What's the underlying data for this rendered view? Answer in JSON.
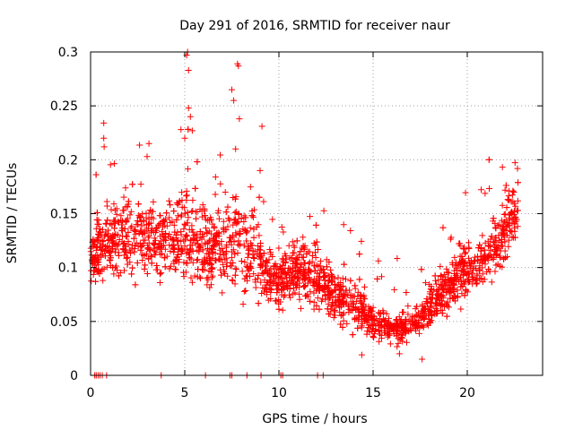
{
  "chart_data": {
    "type": "scatter",
    "title": "Day 291 of 2016, SRMTID for receiver naur",
    "xlabel": "GPS time / hours",
    "ylabel": "SRMTID / TECUs",
    "xlim": [
      0,
      24
    ],
    "ylim": [
      0,
      0.3
    ],
    "xticks": [
      0,
      5,
      10,
      15,
      20
    ],
    "xtick_labels": [
      "0",
      "5",
      "10",
      "15",
      "20"
    ],
    "yticks": [
      0,
      0.05,
      0.1,
      0.15,
      0.2,
      0.25,
      0.3
    ],
    "ytick_labels": [
      "0",
      "0.05",
      "0.1",
      "0.15",
      "0.2",
      "0.25",
      "0.3"
    ],
    "grid": true,
    "marker": "plus",
    "color": "#ff0000",
    "series": [
      {
        "name": "SRMTID",
        "trend": {
          "x": [
            0.0,
            0.5,
            1.0,
            2.0,
            3.0,
            4.0,
            5.0,
            6.0,
            7.0,
            8.0,
            9.0,
            10.0,
            11.0,
            12.0,
            13.0,
            14.0,
            15.0,
            16.0,
            17.0,
            18.0,
            19.0,
            20.0,
            21.0,
            22.0,
            22.7
          ],
          "y": [
            0.108,
            0.12,
            0.125,
            0.13,
            0.128,
            0.125,
            0.13,
            0.118,
            0.12,
            0.125,
            0.1,
            0.088,
            0.098,
            0.09,
            0.075,
            0.068,
            0.05,
            0.042,
            0.045,
            0.065,
            0.08,
            0.1,
            0.11,
            0.13,
            0.155
          ],
          "spread": [
            0.02,
            0.03,
            0.035,
            0.035,
            0.035,
            0.035,
            0.04,
            0.035,
            0.035,
            0.04,
            0.03,
            0.025,
            0.03,
            0.025,
            0.022,
            0.02,
            0.015,
            0.012,
            0.013,
            0.018,
            0.022,
            0.025,
            0.025,
            0.028,
            0.03
          ]
        },
        "peaks": [
          {
            "x": 0.7,
            "y": 0.234
          },
          {
            "x": 0.7,
            "y": 0.22
          },
          {
            "x": 0.72,
            "y": 0.212
          },
          {
            "x": 3.0,
            "y": 0.203
          },
          {
            "x": 3.1,
            "y": 0.215
          },
          {
            "x": 4.8,
            "y": 0.228
          },
          {
            "x": 5.0,
            "y": 0.22
          },
          {
            "x": 5.1,
            "y": 0.297
          },
          {
            "x": 5.15,
            "y": 0.3
          },
          {
            "x": 5.2,
            "y": 0.283
          },
          {
            "x": 5.2,
            "y": 0.248
          },
          {
            "x": 5.3,
            "y": 0.24
          },
          {
            "x": 5.4,
            "y": 0.227
          },
          {
            "x": 7.5,
            "y": 0.265
          },
          {
            "x": 7.6,
            "y": 0.255
          },
          {
            "x": 7.8,
            "y": 0.289
          },
          {
            "x": 7.85,
            "y": 0.287
          },
          {
            "x": 7.9,
            "y": 0.238
          },
          {
            "x": 7.7,
            "y": 0.21
          },
          {
            "x": 9.1,
            "y": 0.231
          },
          {
            "x": 9.0,
            "y": 0.19
          },
          {
            "x": 14.4,
            "y": 0.019
          },
          {
            "x": 16.4,
            "y": 0.02
          },
          {
            "x": 17.6,
            "y": 0.015
          }
        ],
        "zero_points_x": [
          0.22,
          0.3,
          0.4,
          0.5,
          0.62,
          0.85,
          3.75,
          6.1,
          7.4,
          7.5,
          8.3,
          9.05,
          10.1,
          10.2,
          12.05,
          12.35
        ]
      }
    ]
  }
}
